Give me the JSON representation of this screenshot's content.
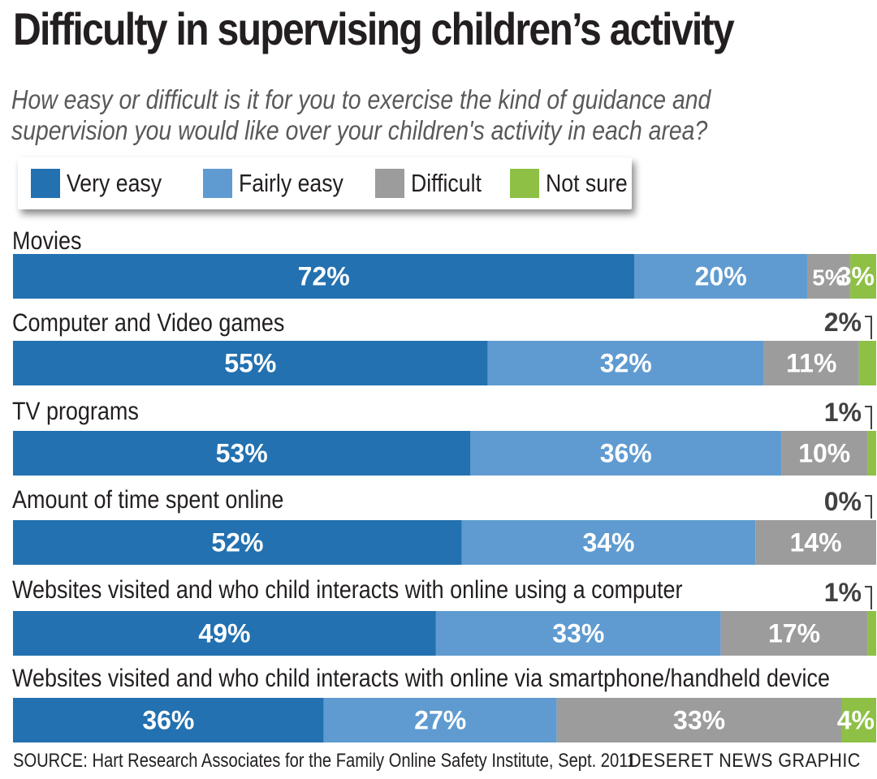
{
  "header": {
    "title": "Difficulty in supervising children’s activity",
    "subtitle": "How easy or difficult is it for you to exercise the kind of guidance and supervision you would like over your children's activity in each area?"
  },
  "legend": [
    {
      "label": "Very easy",
      "color": "#2371b0"
    },
    {
      "label": "Fairly easy",
      "color": "#5f9bd0"
    },
    {
      "label": "Difficult",
      "color": "#9d9c9c"
    },
    {
      "label": "Not sure",
      "color": "#8dc045"
    }
  ],
  "chart_data": {
    "type": "bar",
    "orientation": "horizontal",
    "stacked": true,
    "unit": "%",
    "categories": [
      "Movies",
      "Computer and Video games",
      "TV programs",
      "Amount of time spent online",
      "Websites visited and who child interacts with online using a computer",
      "Websites visited and who child interacts with online via smartphone/handheld device"
    ],
    "series": [
      {
        "name": "Very easy",
        "color": "#2371b0",
        "values": [
          72,
          55,
          53,
          52,
          49,
          36
        ]
      },
      {
        "name": "Fairly easy",
        "color": "#5f9bd0",
        "values": [
          20,
          32,
          36,
          34,
          33,
          27
        ]
      },
      {
        "name": "Difficult",
        "color": "#9d9c9c",
        "values": [
          5,
          11,
          10,
          14,
          17,
          33
        ]
      },
      {
        "name": "Not sure",
        "color": "#8dc045",
        "values": [
          3,
          2,
          1,
          0,
          1,
          4
        ]
      }
    ],
    "xlim": [
      0,
      100
    ],
    "grid": false,
    "legend_position": "top"
  },
  "footer": {
    "source": "SOURCE: Hart Research Associates for the Family Online Safety Institute, Sept. 2011",
    "credit": "DESERET NEWS GRAPHIC"
  }
}
